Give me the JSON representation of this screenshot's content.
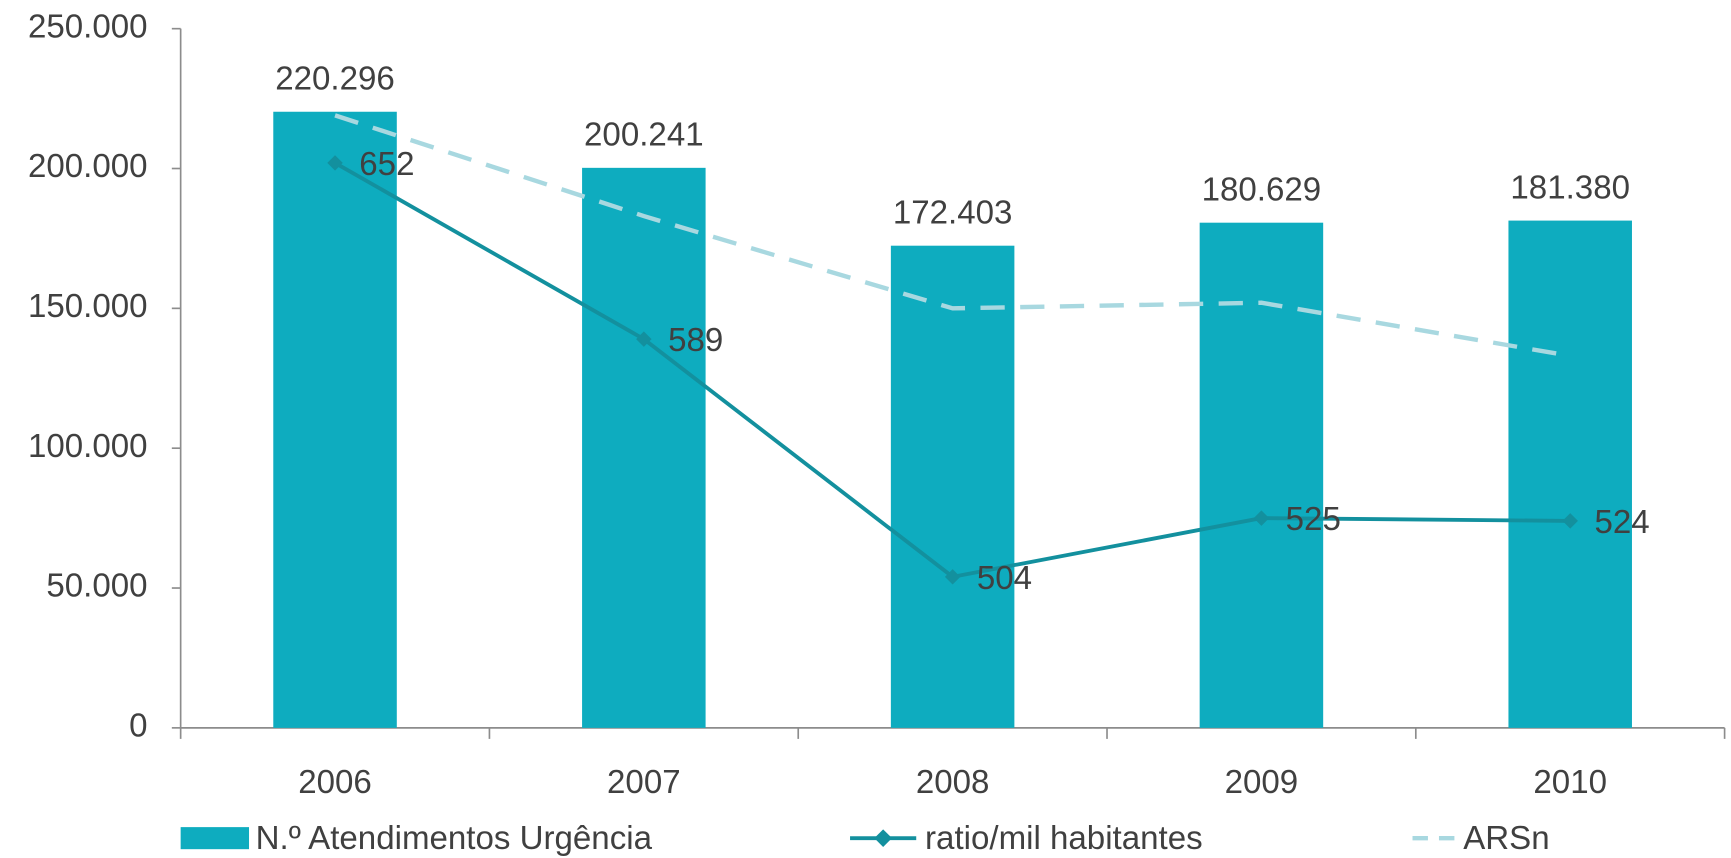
{
  "chart_data": {
    "type": "bar",
    "categories": [
      "2006",
      "2007",
      "2008",
      "2009",
      "2010"
    ],
    "ylim": [
      0,
      250000
    ],
    "yticks": [
      0,
      {
        "value": 50000,
        "label": "50.000"
      },
      {
        "value": 100000,
        "label": "100.000"
      },
      {
        "value": 150000,
        "label": "150.000"
      },
      {
        "value": 200000,
        "label": "200.000"
      },
      {
        "value": 250000,
        "label": "250.000"
      }
    ],
    "y2lim": [
      450,
      700
    ],
    "series": [
      {
        "name": "N.º Atendimentos Urgência",
        "type": "bar",
        "color": "#0eacbf",
        "values": [
          220296,
          200241,
          172403,
          180629,
          181380
        ],
        "value_labels": [
          "220.296",
          "200.241",
          "172.403",
          "180.629",
          "181.380"
        ]
      },
      {
        "name": "ratio/mil habitantes",
        "type": "line",
        "axis": "y2",
        "color": "#13909e",
        "marker": "diamond",
        "values": [
          652,
          589,
          504,
          525,
          524
        ]
      },
      {
        "name": "ARSn",
        "type": "line",
        "axis": "y2",
        "color": "#a8d8e0",
        "dashed": true,
        "values": [
          669,
          633,
          600,
          602,
          583
        ]
      }
    ],
    "legend": "bottom"
  }
}
